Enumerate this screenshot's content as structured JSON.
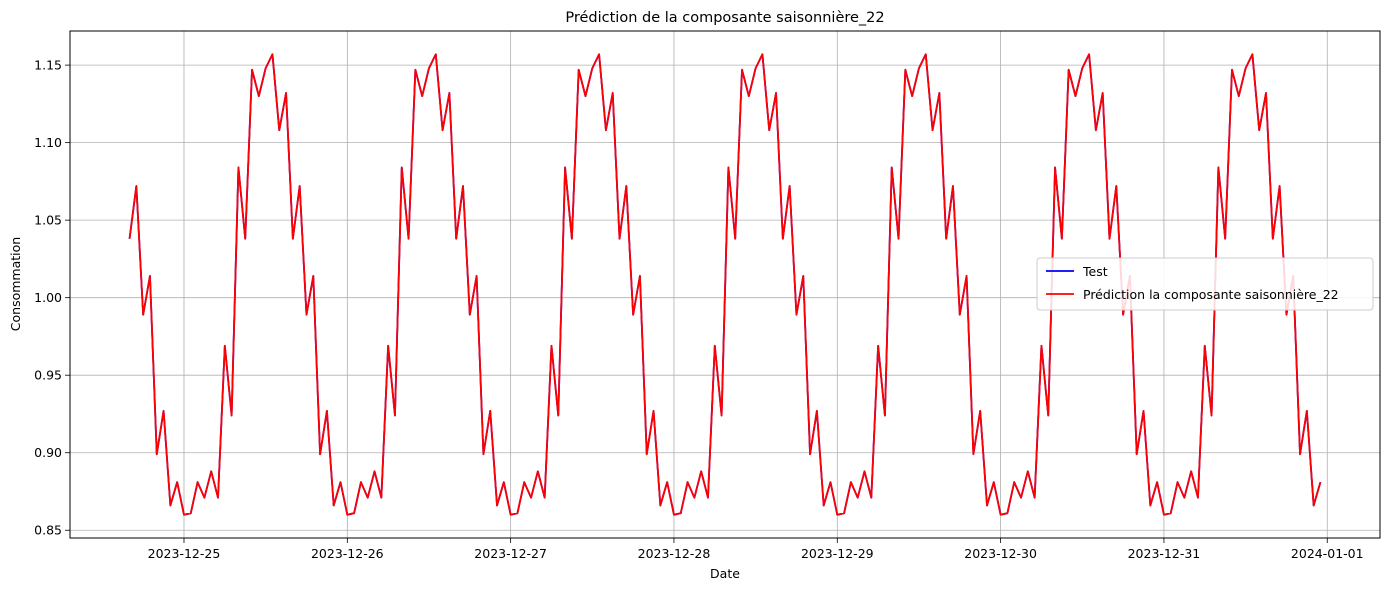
{
  "chart_data": {
    "type": "line",
    "title": "Prédiction de la composante saisonnière_22",
    "xlabel": "Date",
    "ylabel": "Consommation",
    "x_range": [
      "2023-12-24T16:00",
      "2023-12-31T23:00"
    ],
    "x_ticks": [
      "2023-12-25",
      "2023-12-26",
      "2023-12-27",
      "2023-12-28",
      "2023-12-29",
      "2023-12-30",
      "2023-12-31",
      "2024-01-01"
    ],
    "y_ticks": [
      "0.85",
      "0.90",
      "0.95",
      "1.00",
      "1.05",
      "1.10",
      "1.15"
    ],
    "ylim": [
      0.845,
      1.172
    ],
    "grid": true,
    "legend_position": "center-right",
    "seasonal_period_hours": 24,
    "x_interval_hours": 1,
    "seasonal_pattern": [
      0.86,
      0.861,
      0.881,
      0.871,
      0.888,
      0.871,
      0.969,
      0.924,
      1.084,
      1.038,
      1.147,
      1.13,
      1.148,
      1.157,
      1.108,
      1.132,
      1.038,
      1.072,
      0.989,
      1.014,
      0.899,
      0.927,
      0.866,
      0.881
    ],
    "series": [
      {
        "name": "Test",
        "color": "#0000ff"
      },
      {
        "name": "Prédiction la composante saisonnière_22",
        "color": "#ff0000"
      }
    ]
  }
}
